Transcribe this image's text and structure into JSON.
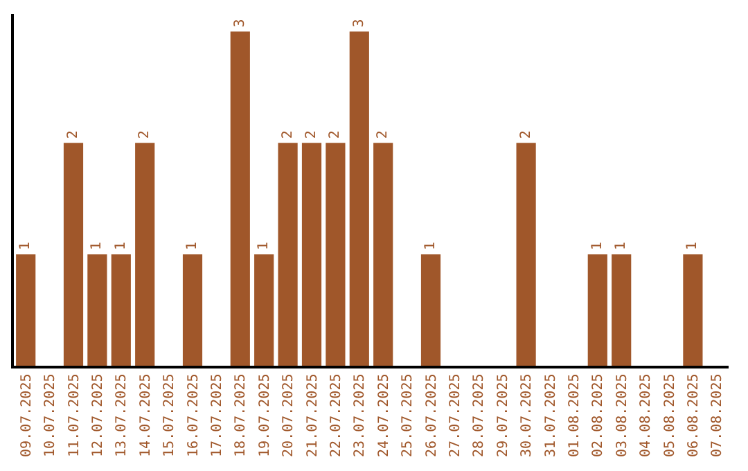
{
  "chart_data": {
    "type": "bar",
    "categories": [
      "09.07.2025",
      "10.07.2025",
      "11.07.2025",
      "12.07.2025",
      "13.07.2025",
      "14.07.2025",
      "15.07.2025",
      "16.07.2025",
      "17.07.2025",
      "18.07.2025",
      "19.07.2025",
      "20.07.2025",
      "21.07.2025",
      "22.07.2025",
      "23.07.2025",
      "24.07.2025",
      "25.07.2025",
      "26.07.2025",
      "27.07.2025",
      "28.07.2025",
      "29.07.2025",
      "30.07.2025",
      "31.07.2025",
      "01.08.2025",
      "02.08.2025",
      "03.08.2025",
      "04.08.2025",
      "05.08.2025",
      "06.08.2025",
      "07.08.2025"
    ],
    "values": [
      1,
      0,
      2,
      1,
      1,
      2,
      0,
      1,
      0,
      3,
      1,
      2,
      2,
      2,
      3,
      2,
      0,
      1,
      0,
      0,
      0,
      2,
      0,
      0,
      1,
      1,
      0,
      0,
      1,
      0
    ],
    "value_labels": [
      "1",
      null,
      "2",
      "1",
      "1",
      "2",
      null,
      "1",
      null,
      "3",
      "1",
      "2",
      "2",
      "2",
      "3",
      "2",
      null,
      "1",
      null,
      null,
      null,
      "2",
      null,
      null,
      "1",
      "1",
      null,
      null,
      "1",
      null
    ],
    "color": "#a0572a"
  }
}
